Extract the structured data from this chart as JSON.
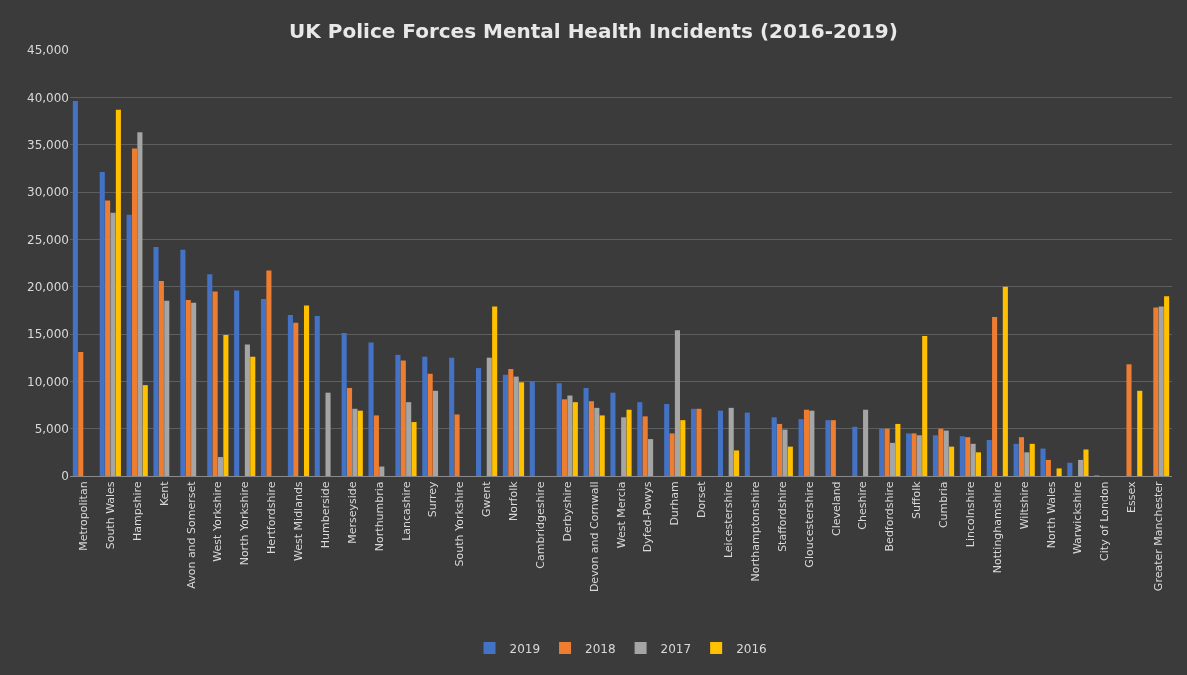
{
  "chart_data": {
    "type": "bar",
    "title": "UK Police Forces Mental Health Incidents (2016-2019)",
    "categories": [
      "Metropolitan",
      "South Wales",
      "Hampshire",
      "Kent",
      "Avon and Somerset",
      "West Yorkshire",
      "North Yorkshire",
      "Hertfordshire",
      "West Midlands",
      "Humberside",
      "Merseyside",
      "Northumbria",
      "Lancashire",
      "Surrey",
      "South Yorkshire",
      "Gwent",
      "Norfolk",
      "Cambridgeshire",
      "Derbyshire",
      "Devon and Cornwall",
      "West Mercia",
      "Dyfed-Powys",
      "Durham",
      "Dorset",
      "Leicestershire",
      "Northamptonshire",
      "Staffordshire",
      "Gloucestershire",
      "Cleveland",
      "Cheshire",
      "Bedfordshire",
      "Suffolk",
      "Cumbria",
      "Lincolnshire",
      "Nottinghamshire",
      "Wiltshire",
      "North Wales",
      "Warwickshire",
      "City of London",
      "Essex",
      "Greater Manchester"
    ],
    "series": [
      {
        "name": "2019",
        "color": "#4472c4",
        "values": [
          39600,
          32100,
          27600,
          24200,
          23900,
          21300,
          19600,
          18700,
          17000,
          16900,
          15100,
          14100,
          12800,
          12600,
          12500,
          11400,
          10700,
          10000,
          9800,
          9300,
          8800,
          7800,
          7600,
          7100,
          6900,
          6700,
          6200,
          6000,
          5900,
          5200,
          5000,
          4500,
          4300,
          4200,
          3800,
          3400,
          2900,
          1400,
          100,
          null,
          null
        ]
      },
      {
        "name": "2018",
        "color": "#ed7d31",
        "values": [
          13100,
          29100,
          34600,
          20600,
          18600,
          19500,
          null,
          21700,
          16200,
          null,
          9300,
          6400,
          12200,
          10800,
          6500,
          null,
          11300,
          null,
          8100,
          7900,
          null,
          6300,
          4500,
          7100,
          null,
          null,
          5500,
          7000,
          5900,
          null,
          5000,
          4500,
          5000,
          4100,
          16800,
          4100,
          1700,
          null,
          null,
          11800,
          17800
        ]
      },
      {
        "name": "2017",
        "color": "#a5a5a5",
        "values": [
          null,
          27800,
          36300,
          18500,
          18300,
          2000,
          13900,
          null,
          null,
          8800,
          7100,
          1000,
          7800,
          9000,
          null,
          12500,
          10500,
          null,
          8500,
          7200,
          6200,
          3900,
          15400,
          null,
          7200,
          null,
          4900,
          6900,
          null,
          7000,
          3500,
          4300,
          4800,
          3400,
          null,
          2500,
          null,
          1700,
          null,
          null,
          17900
        ]
      },
      {
        "name": "2016",
        "color": "#ffc000",
        "values": [
          null,
          38700,
          9600,
          null,
          null,
          14900,
          12600,
          null,
          18000,
          null,
          6900,
          null,
          5700,
          null,
          null,
          17900,
          9900,
          null,
          7800,
          6400,
          7000,
          null,
          5900,
          null,
          2700,
          null,
          3100,
          null,
          null,
          null,
          5500,
          14800,
          3100,
          2500,
          20000,
          3400,
          800,
          2800,
          null,
          9000,
          19000
        ]
      }
    ],
    "ylim": [
      0,
      45000
    ],
    "yticks": [
      0,
      {
        "value": 5000,
        "label": "5,000"
      },
      {
        "value": 10000,
        "label": "10,000"
      },
      {
        "value": 15000,
        "label": "15,000"
      },
      {
        "value": 20000,
        "label": "20,000"
      },
      {
        "value": 25000,
        "label": "25,000"
      },
      {
        "value": 30000,
        "label": "30,000"
      },
      {
        "value": 35000,
        "label": "35,000"
      },
      {
        "value": 40000,
        "label": "40,000"
      },
      {
        "value": 45000,
        "label": "45,000"
      }
    ],
    "grid": "y",
    "legend": "bottom"
  }
}
